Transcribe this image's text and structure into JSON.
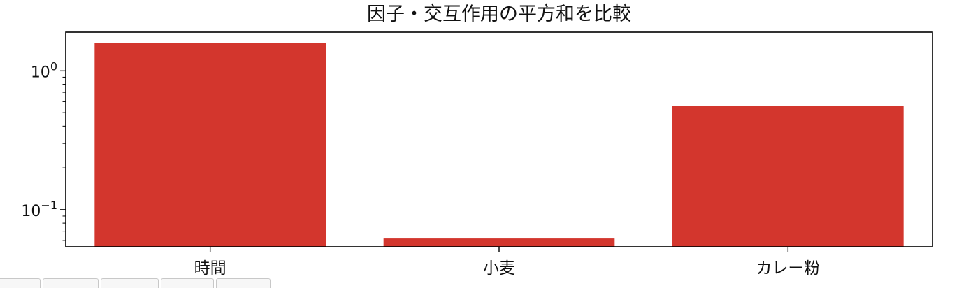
{
  "colors": {
    "bar": "#d3362d"
  },
  "chart_data": {
    "type": "bar",
    "title": "因子・交互作用の平方和を比較",
    "categories": [
      "時間",
      "小麦",
      "カレー粉"
    ],
    "values": [
      1.58,
      0.062,
      0.56
    ],
    "yscale": "log",
    "ylim": [
      0.054,
      1.9
    ],
    "xlabel": "",
    "ylabel": "",
    "grid": false,
    "legend": "none",
    "yticks": [
      {
        "value": 1,
        "base": "10",
        "exp": "0"
      },
      {
        "value": 0.1,
        "base": "10",
        "exp": "−1"
      }
    ]
  }
}
